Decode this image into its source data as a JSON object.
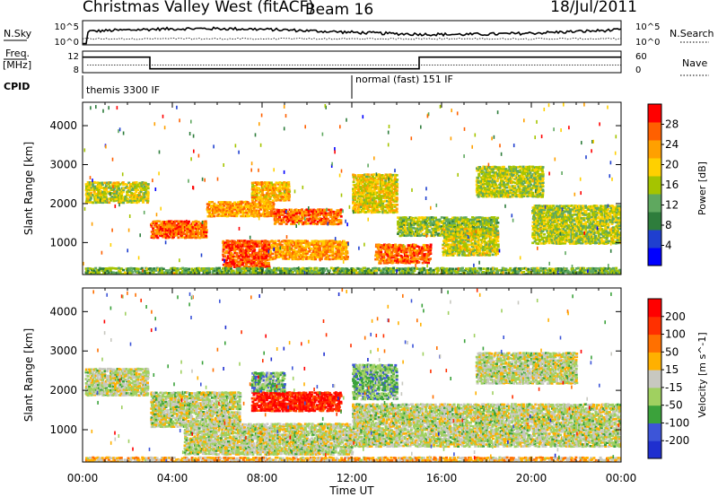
{
  "chart_data": {
    "type": "heatmap",
    "title": {
      "left": "Christmas Valley West (fitACF)",
      "center": "Beam 16",
      "right": "18/Jul/2011"
    },
    "xlabel": "Time UT",
    "x_ticks": [
      "00:00",
      "04:00",
      "08:00",
      "12:00",
      "16:00",
      "20:00",
      "00:00"
    ],
    "xlim_hours": [
      0,
      24
    ],
    "status_panels": {
      "noise": {
        "left_label": "N.Sky",
        "right_label": "N.Search",
        "left_ticks": [
          "10^5",
          "10^0"
        ],
        "right_ticks": [
          "10^5",
          "10^0"
        ],
        "sky_level": 0.55,
        "search_level": 0.25
      },
      "frequency": {
        "left_label_top": "Freq.",
        "left_label_bottom": "[MHz]",
        "right_label": "Nave",
        "left_ticks": [
          "12",
          "8"
        ],
        "right_ticks": [
          "60",
          "0"
        ],
        "freq_segments": [
          {
            "start": 0,
            "end": 3.0,
            "level": 0.72
          },
          {
            "start": 3.0,
            "end": 15.0,
            "level": 0.18
          },
          {
            "start": 15.0,
            "end": 24,
            "level": 0.72
          }
        ],
        "nave_level": 0.35
      },
      "cpid": {
        "label": "CPID",
        "switch_hour": 12.0,
        "left_text": "themis 3300 IF",
        "right_text": "normal (fast) 151 IF"
      }
    },
    "panels": [
      {
        "name": "power",
        "ylabel": "Slant Range [km]",
        "ylim": [
          180,
          4600
        ],
        "y_ticks": [
          1000,
          2000,
          3000,
          4000
        ],
        "colorbar_label": "Power [dB]",
        "colorbar_ticks": [
          "28",
          "24",
          "20",
          "16",
          "12",
          "8",
          "4"
        ],
        "colors": [
          "#0000ff",
          "#1f3fcf",
          "#2e7d3c",
          "#5fa85f",
          "#a5c400",
          "#ffd000",
          "#ffa000",
          "#ff6000",
          "#ff0000"
        ],
        "regions": [
          {
            "t0": 0.1,
            "t1": 2.9,
            "r0": 2050,
            "r1": 2600,
            "level": 0.55
          },
          {
            "t0": 3.0,
            "t1": 5.5,
            "r0": 1150,
            "r1": 1600,
            "level": 0.85
          },
          {
            "t0": 5.5,
            "t1": 8.5,
            "r0": 1700,
            "r1": 2100,
            "level": 0.75
          },
          {
            "t0": 7.5,
            "t1": 9.2,
            "r0": 2100,
            "r1": 2600,
            "level": 0.7
          },
          {
            "t0": 8.5,
            "t1": 11.5,
            "r0": 1500,
            "r1": 1900,
            "level": 0.85
          },
          {
            "t0": 6.2,
            "t1": 8.3,
            "r0": 400,
            "r1": 1100,
            "level": 0.9
          },
          {
            "t0": 8.3,
            "t1": 11.8,
            "r0": 600,
            "r1": 1100,
            "level": 0.75
          },
          {
            "t0": 12.0,
            "t1": 14.0,
            "r0": 1800,
            "r1": 2800,
            "level": 0.6
          },
          {
            "t0": 13.0,
            "t1": 15.5,
            "r0": 500,
            "r1": 1000,
            "level": 0.85
          },
          {
            "t0": 14.0,
            "t1": 18.5,
            "r0": 1200,
            "r1": 1700,
            "level": 0.45
          },
          {
            "t0": 16.0,
            "t1": 18.5,
            "r0": 700,
            "r1": 1400,
            "level": 0.55
          },
          {
            "t0": 17.5,
            "t1": 20.5,
            "r0": 2200,
            "r1": 3000,
            "level": 0.5
          },
          {
            "t0": 20.0,
            "t1": 24.0,
            "r0": 1000,
            "r1": 2000,
            "level": 0.5
          },
          {
            "t0": 0.1,
            "t1": 24.0,
            "r0": 200,
            "r1": 400,
            "level": 0.4
          }
        ]
      },
      {
        "name": "velocity",
        "ylabel": "Slant Range [km]",
        "ylim": [
          180,
          4600
        ],
        "y_ticks": [
          1000,
          2000,
          3000,
          4000
        ],
        "colorbar_label": "Velocity [m s^-1]",
        "colorbar_ticks": [
          "200",
          "100",
          "50",
          "15",
          "-15",
          "-50",
          "-100",
          "-200"
        ],
        "colors": [
          "#1f2fcf",
          "#3d55d8",
          "#3ba23b",
          "#a0d060",
          "#c8c8c0",
          "#ffb000",
          "#ff7000",
          "#ff3000",
          "#ff0000"
        ],
        "regions": [
          {
            "t0": 0.1,
            "t1": 2.9,
            "r0": 1900,
            "r1": 2600,
            "level": 0.45
          },
          {
            "t0": 3.0,
            "t1": 7.0,
            "r0": 1100,
            "r1": 2000,
            "level": 0.45
          },
          {
            "t0": 7.5,
            "t1": 11.5,
            "r0": 1500,
            "r1": 2000,
            "level": 0.95
          },
          {
            "t0": 7.5,
            "t1": 9.0,
            "r0": 2000,
            "r1": 2500,
            "level": 0.3
          },
          {
            "t0": 4.5,
            "t1": 12.0,
            "r0": 400,
            "r1": 1200,
            "level": 0.45
          },
          {
            "t0": 12.0,
            "t1": 14.0,
            "r0": 1800,
            "r1": 2700,
            "level": 0.3
          },
          {
            "t0": 12.0,
            "t1": 24.0,
            "r0": 600,
            "r1": 1700,
            "level": 0.45
          },
          {
            "t0": 17.5,
            "t1": 22.0,
            "r0": 2200,
            "r1": 3000,
            "level": 0.45
          },
          {
            "t0": 0.1,
            "t1": 24.0,
            "r0": 200,
            "r1": 350,
            "level": 0.6
          }
        ]
      }
    ]
  }
}
